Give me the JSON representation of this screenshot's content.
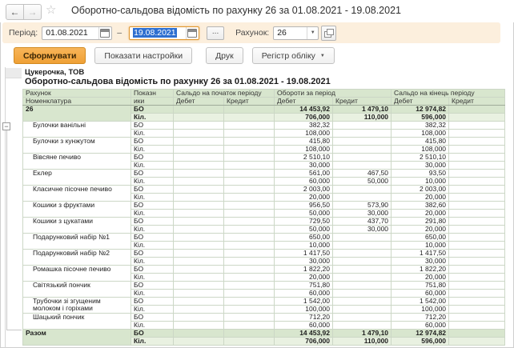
{
  "colors": {
    "accent_button": "#efa035",
    "filter_bar": "#fcefdd",
    "group_row": "#d8e6ce",
    "group_row_light": "#e9f1e1",
    "selection": "#2e6fd0"
  },
  "topbar": {
    "back": "←",
    "forward": "→",
    "star": "☆",
    "title": "Оборотно-сальдова відомість по рахунку 26 за 01.08.2021 - 19.08.2021"
  },
  "filter": {
    "period_label": "Період:",
    "date_from": "01.08.2021",
    "dash": "–",
    "date_to": "19.08.2021",
    "more_button": "...",
    "account_label": "Рахунок:",
    "account_value": "26",
    "dropdown_arrow": "▼"
  },
  "toolbar": {
    "generate": "Сформувати",
    "settings": "Показати настройки",
    "print": "Друк",
    "register": "Регістр обліку",
    "register_arrow": "▼"
  },
  "tree": {
    "collapse_glyph": "−"
  },
  "report": {
    "company": "Цукерочка, ТОВ",
    "title": "Оборотно-сальдова відомість по рахунку 26 за 01.08.2021 - 19.08.2021",
    "table": {
      "header": {
        "account": "Рахунок",
        "nomenclature": "Номенклатура",
        "indicators_line1": "Показн",
        "indicators_line2": "ики",
        "opening_balance": "Сальдо на початок періоду",
        "turnover": "Обороти за період",
        "closing_balance": "Сальдо на кінець періоду",
        "debit": "Дебет",
        "credit": "Кредит"
      },
      "indicator_labels": [
        "БО",
        "Кіл."
      ],
      "rows": [
        {
          "name": "26",
          "type": "account",
          "bo": [
            "",
            "",
            "14 453,92",
            "1 479,10",
            "12 974,82",
            ""
          ],
          "kil": [
            "",
            "",
            "706,000",
            "110,000",
            "596,000",
            ""
          ]
        },
        {
          "name": "Булочки ванільні",
          "type": "item",
          "bo": [
            "",
            "",
            "382,32",
            "",
            "382,32",
            ""
          ],
          "kil": [
            "",
            "",
            "108,000",
            "",
            "108,000",
            ""
          ]
        },
        {
          "name": "Булочки з кунжутом",
          "type": "item",
          "bo": [
            "",
            "",
            "415,80",
            "",
            "415,80",
            ""
          ],
          "kil": [
            "",
            "",
            "108,000",
            "",
            "108,000",
            ""
          ]
        },
        {
          "name": "Вівсяне  печиво",
          "type": "item",
          "bo": [
            "",
            "",
            "2 510,10",
            "",
            "2 510,10",
            ""
          ],
          "kil": [
            "",
            "",
            "30,000",
            "",
            "30,000",
            ""
          ]
        },
        {
          "name": "Еклер",
          "type": "item",
          "bo": [
            "",
            "",
            "561,00",
            "467,50",
            "93,50",
            ""
          ],
          "kil": [
            "",
            "",
            "60,000",
            "50,000",
            "10,000",
            ""
          ]
        },
        {
          "name": "Класичне пісочне печиво",
          "type": "item",
          "bo": [
            "",
            "",
            "2 003,00",
            "",
            "2 003,00",
            ""
          ],
          "kil": [
            "",
            "",
            "20,000",
            "",
            "20,000",
            ""
          ]
        },
        {
          "name": "Кошики з фруктами",
          "type": "item",
          "bo": [
            "",
            "",
            "956,50",
            "573,90",
            "382,60",
            ""
          ],
          "kil": [
            "",
            "",
            "50,000",
            "30,000",
            "20,000",
            ""
          ]
        },
        {
          "name": "Кошики з цукатами",
          "type": "item",
          "bo": [
            "",
            "",
            "729,50",
            "437,70",
            "291,80",
            ""
          ],
          "kil": [
            "",
            "",
            "50,000",
            "30,000",
            "20,000",
            ""
          ]
        },
        {
          "name": "Подарунковий набір №1",
          "type": "item",
          "bo": [
            "",
            "",
            "650,00",
            "",
            "650,00",
            ""
          ],
          "kil": [
            "",
            "",
            "10,000",
            "",
            "10,000",
            ""
          ]
        },
        {
          "name": "Подарунковий набір №2",
          "type": "item",
          "bo": [
            "",
            "",
            "1 417,50",
            "",
            "1 417,50",
            ""
          ],
          "kil": [
            "",
            "",
            "30,000",
            "",
            "30,000",
            ""
          ]
        },
        {
          "name": "Ромашка пісочне печиво",
          "type": "item",
          "bo": [
            "",
            "",
            "1 822,20",
            "",
            "1 822,20",
            ""
          ],
          "kil": [
            "",
            "",
            "20,000",
            "",
            "20,000",
            ""
          ]
        },
        {
          "name": "Світязький пончик",
          "type": "item",
          "bo": [
            "",
            "",
            "751,80",
            "",
            "751,80",
            ""
          ],
          "kil": [
            "",
            "",
            "60,000",
            "",
            "60,000",
            ""
          ]
        },
        {
          "name": "Трубочки зі згущеним молоком і горіхами",
          "type": "item",
          "bo": [
            "",
            "",
            "1 542,00",
            "",
            "1 542,00",
            ""
          ],
          "kil": [
            "",
            "",
            "100,000",
            "",
            "100,000",
            ""
          ]
        },
        {
          "name": "Шацький пончик",
          "type": "item",
          "bo": [
            "",
            "",
            "712,20",
            "",
            "712,20",
            ""
          ],
          "kil": [
            "",
            "",
            "60,000",
            "",
            "60,000",
            ""
          ]
        },
        {
          "name": "Разом",
          "type": "total",
          "bo": [
            "",
            "",
            "14 453,92",
            "1 479,10",
            "12 974,82",
            ""
          ],
          "kil": [
            "",
            "",
            "706,000",
            "110,000",
            "596,000",
            ""
          ]
        }
      ]
    }
  }
}
